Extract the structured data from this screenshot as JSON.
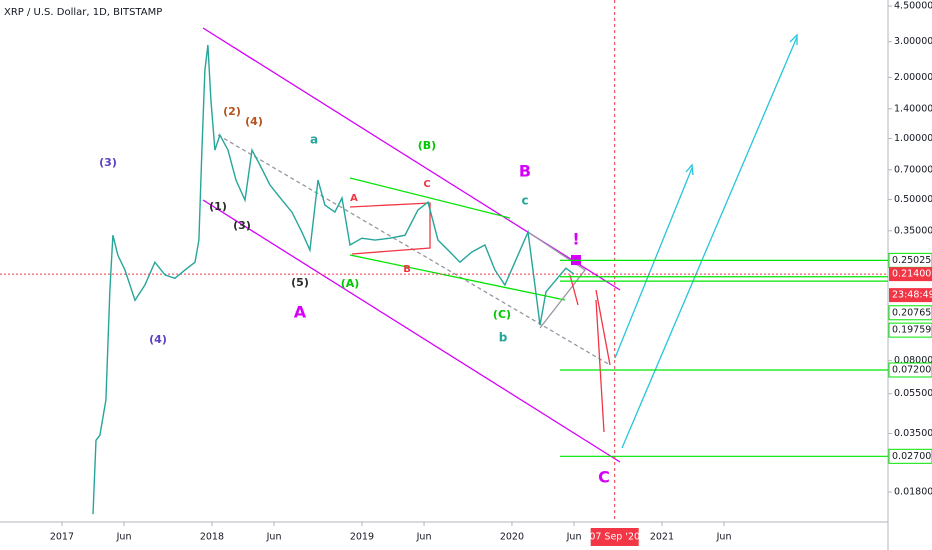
{
  "chart_data": {
    "type": "line",
    "title": "XRP / U.S. Dollar, 1D, BITSTAMP",
    "log_scale": true,
    "color": "#26a69a",
    "x": [
      2017.207,
      2017.227,
      2017.253,
      2017.293,
      2017.32,
      2017.34,
      2017.373,
      2017.42,
      2017.487,
      2017.553,
      2017.62,
      2017.687,
      2017.753,
      2017.82,
      2017.887,
      2017.913,
      2017.933,
      2017.953,
      2017.973,
      2017.993,
      2018.02,
      2018.053,
      2018.107,
      2018.16,
      2018.22,
      2018.267,
      2018.32,
      2018.387,
      2018.467,
      2018.533,
      2018.6,
      2018.653,
      2018.707,
      2018.753,
      2018.82,
      2018.867,
      2018.92,
      2019.0,
      2019.087,
      2019.187,
      2019.287,
      2019.373,
      2019.44,
      2019.507,
      2019.587,
      2019.653,
      2019.733,
      2019.82,
      2019.887,
      2019.953,
      2020.02,
      2020.107,
      2020.153,
      2020.187,
      2020.227,
      2020.293,
      2020.36,
      2020.413
    ],
    "values": [
      0.014,
      0.0324,
      0.0343,
      0.0512,
      0.179,
      0.333,
      0.265,
      0.224,
      0.159,
      0.189,
      0.245,
      0.212,
      0.204,
      0.224,
      0.245,
      0.315,
      0.876,
      2.17,
      2.89,
      1.55,
      0.876,
      1.04,
      0.876,
      0.623,
      0.496,
      0.876,
      0.739,
      0.589,
      0.496,
      0.433,
      0.345,
      0.281,
      0.623,
      0.469,
      0.433,
      0.508,
      0.298,
      0.322,
      0.315,
      0.322,
      0.333,
      0.443,
      0.485,
      0.315,
      0.275,
      0.245,
      0.275,
      0.298,
      0.224,
      0.189,
      0.245,
      0.345,
      0.189,
      0.12,
      0.175,
      0.2,
      0.229,
      0.214
    ],
    "xlim": [
      2016.587,
      2022.507
    ],
    "ylim": [
      0.0128,
      4.82
    ],
    "xticks": [
      {
        "value": 2017,
        "label": "2017"
      },
      {
        "value": 2017.414,
        "label": "Jun"
      },
      {
        "value": 2018,
        "label": "2018"
      },
      {
        "value": 2018.414,
        "label": "Jun"
      },
      {
        "value": 2019,
        "label": "2019"
      },
      {
        "value": 2019.414,
        "label": "Jun"
      },
      {
        "value": 2020,
        "label": "2020"
      },
      {
        "value": 2020.414,
        "label": "Jun"
      },
      {
        "value": 2021,
        "label": "2021"
      },
      {
        "value": 2021.414,
        "label": "Jun"
      }
    ],
    "yticks": [
      {
        "value": 4.5,
        "label": "4.50000"
      },
      {
        "value": 3,
        "label": "3.00000"
      },
      {
        "value": 2,
        "label": "2.00000"
      },
      {
        "value": 1.4,
        "label": "1.40000"
      },
      {
        "value": 1,
        "label": "1.00000"
      },
      {
        "value": 0.7,
        "label": "0.70000"
      },
      {
        "value": 0.5,
        "label": "0.50000"
      },
      {
        "value": 0.35,
        "label": "0.35000"
      },
      {
        "value": 0.08,
        "label": "0.08000"
      },
      {
        "value": 0.055,
        "label": "0.05500"
      },
      {
        "value": 0.035,
        "label": "0.03500"
      },
      {
        "value": 0.018,
        "label": "0.01800"
      }
    ],
    "current_price": {
      "value": 0.214,
      "label": "0.21400",
      "countdown": "23:48:49",
      "color": "#f23645"
    },
    "marker_date": {
      "value": 2020.685,
      "label": "07 Sep '20",
      "color": "#f23645"
    },
    "price_lines": [
      {
        "value": 0.25025,
        "label": "0.25025"
      },
      {
        "value": 0.20765,
        "label": "0.20765"
      },
      {
        "value": 0.19759,
        "label": "0.19759"
      },
      {
        "value": 0.072,
        "label": "0.07200"
      },
      {
        "value": 0.027,
        "label": "0.02700"
      }
    ],
    "price_line_color": "#00e600",
    "annotations": [
      {
        "text": "(3)",
        "color": "#5b3fc4"
      },
      {
        "text": "(4)",
        "color": "#5b3fc4"
      },
      {
        "text": "(1)",
        "color": "#2b2b2b"
      },
      {
        "text": "(2)",
        "color": "#b5531d"
      },
      {
        "text": "(4)",
        "color": "#b5531d"
      },
      {
        "text": "(3)",
        "color": "#2b2b2b"
      },
      {
        "text": "(5)",
        "color": "#2b2b2b"
      },
      {
        "text": "A",
        "color": "#d500f9"
      },
      {
        "text": "a",
        "color": "#26a69a"
      },
      {
        "text": "(A)",
        "color": "#00c800"
      },
      {
        "text": "(B)",
        "color": "#00c800"
      },
      {
        "text": "A",
        "color": "#f23645"
      },
      {
        "text": "B",
        "color": "#f23645"
      },
      {
        "text": "C",
        "color": "#f23645"
      },
      {
        "text": "B",
        "color": "#d500f9"
      },
      {
        "text": "c",
        "color": "#26a69a"
      },
      {
        "text": "(C)",
        "color": "#00c800"
      },
      {
        "text": "b",
        "color": "#26a69a"
      },
      {
        "text": "!",
        "color": "#d500f9"
      },
      {
        "text": "C",
        "color": "#d500f9"
      }
    ]
  }
}
